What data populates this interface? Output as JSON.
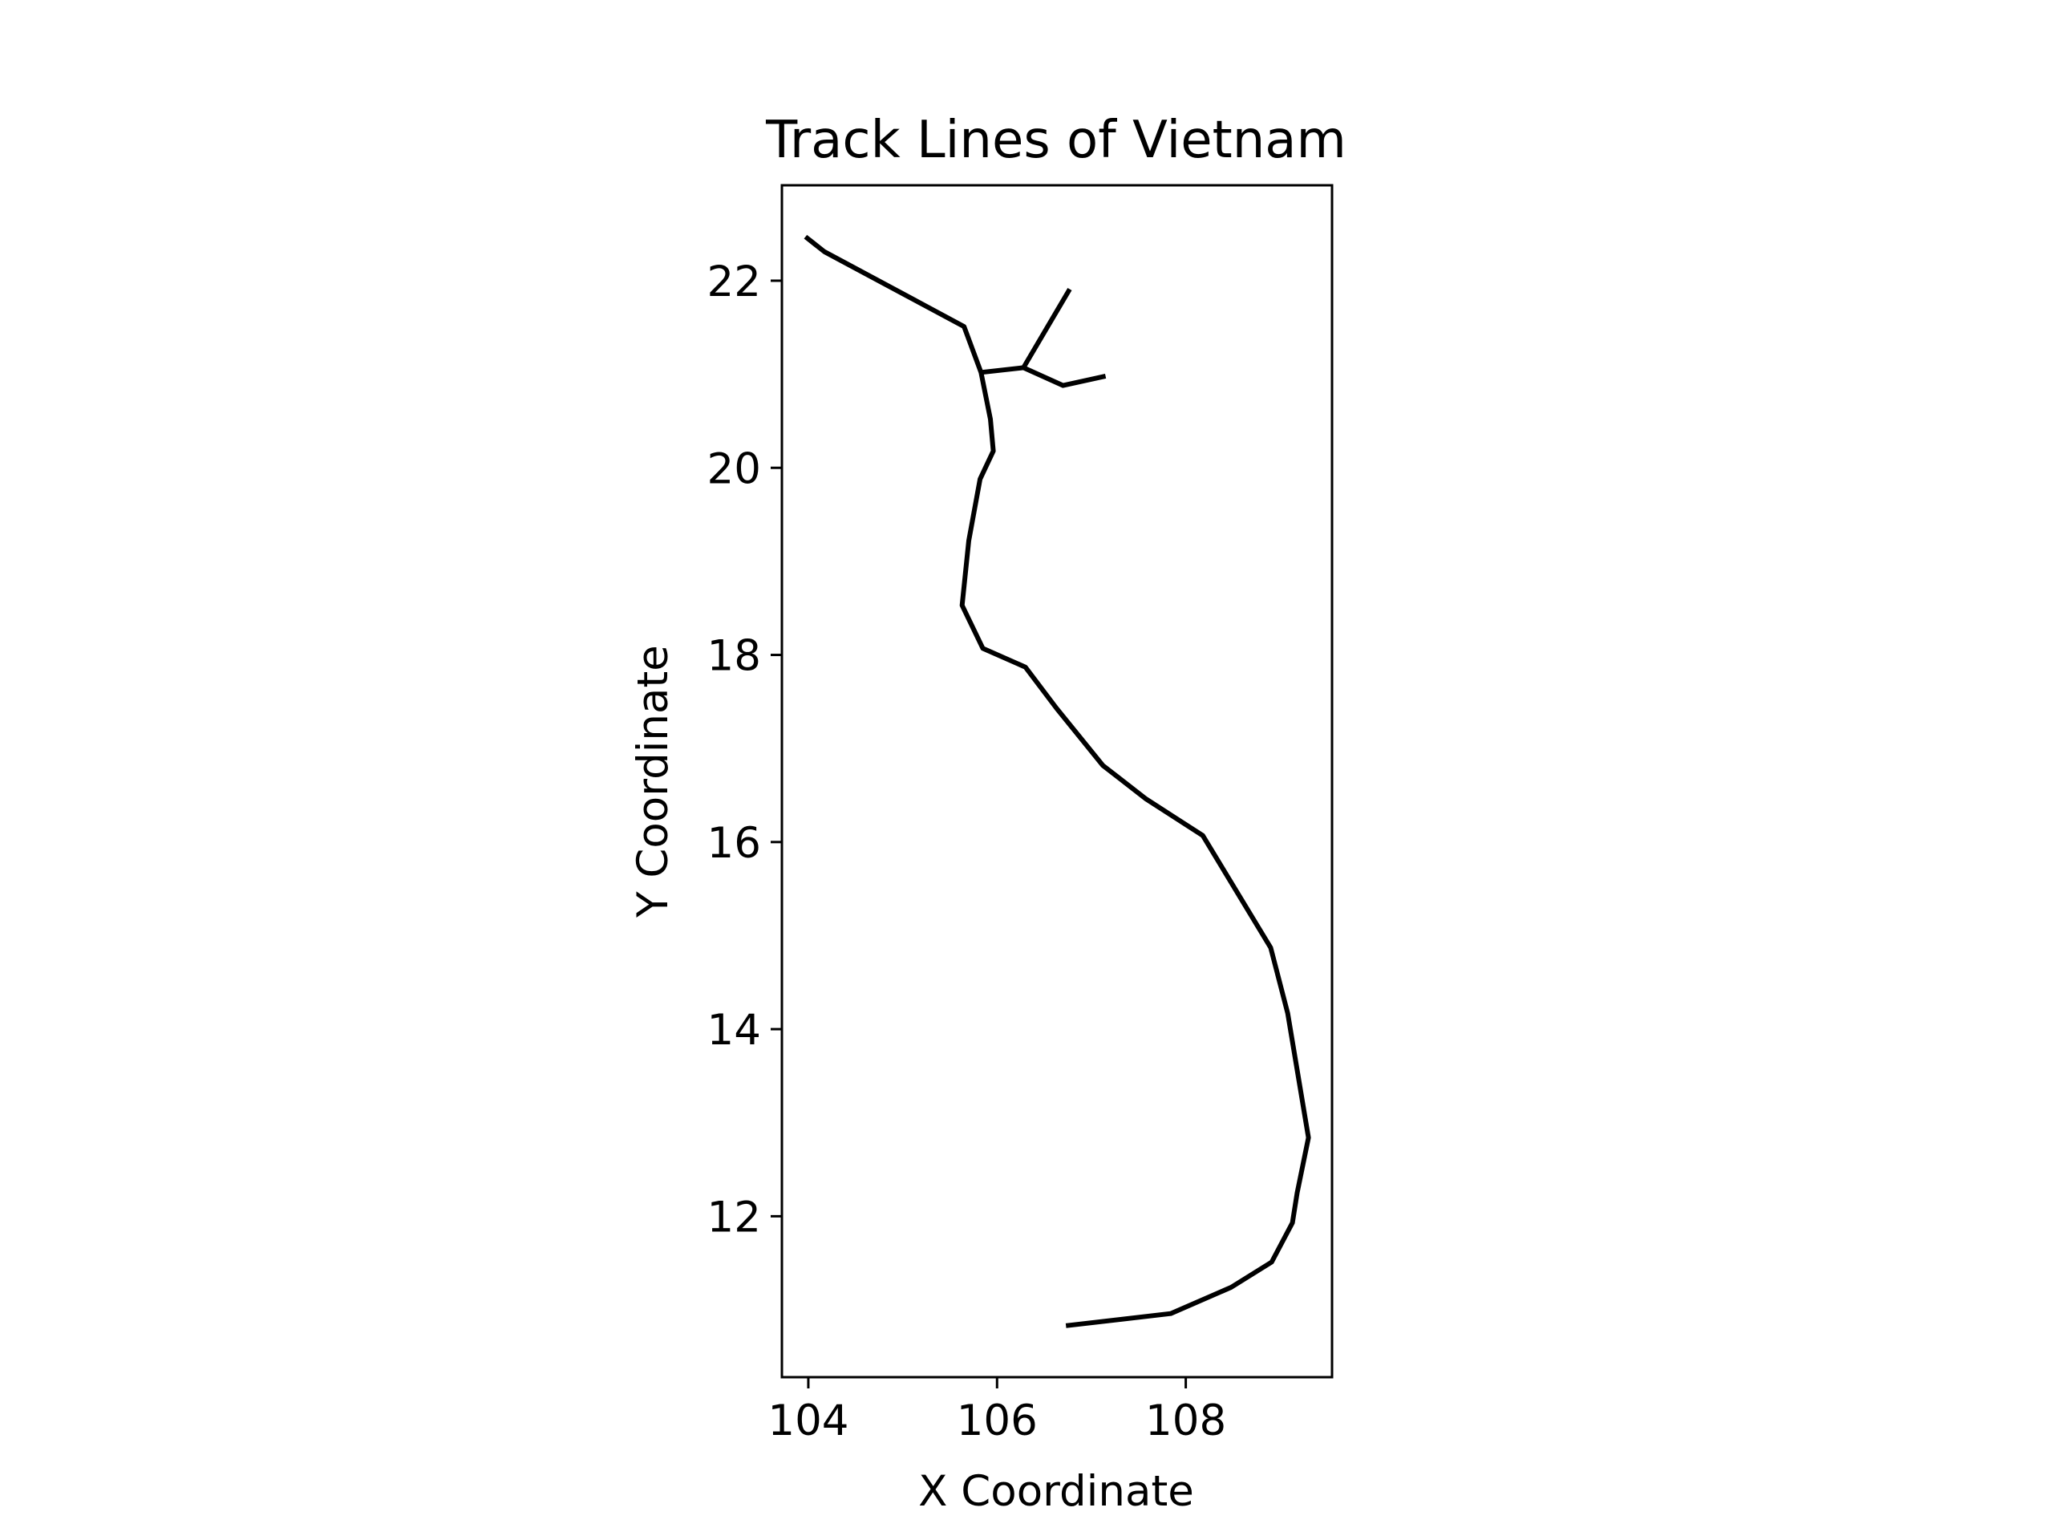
{
  "chart_data": {
    "type": "line",
    "title": "Track Lines of Vietnam",
    "xlabel": "X Coordinate",
    "ylabel": "Y Coordinate",
    "xlim": [
      103.72,
      109.55
    ],
    "ylim": [
      10.28,
      23.02
    ],
    "x_ticks": [
      104,
      106,
      108
    ],
    "y_ticks": [
      12,
      14,
      16,
      18,
      20,
      22
    ],
    "x_tick_labels": [
      "104",
      "106",
      "108"
    ],
    "y_tick_labels": [
      "12",
      "14",
      "16",
      "18",
      "20",
      "22"
    ],
    "grid": false,
    "legend": "none",
    "line_color": "#000000",
    "series": [
      {
        "values": [
          [
            103.97,
            22.47
          ],
          [
            104.17,
            22.31
          ],
          [
            105.65,
            21.51
          ],
          [
            105.83,
            21.02
          ],
          [
            105.93,
            20.52
          ],
          [
            105.96,
            20.18
          ],
          [
            105.82,
            19.88
          ],
          [
            105.7,
            19.22
          ],
          [
            105.63,
            18.53
          ],
          [
            105.85,
            18.07
          ],
          [
            106.3,
            17.87
          ],
          [
            106.63,
            17.43
          ],
          [
            107.12,
            16.82
          ],
          [
            107.58,
            16.46
          ],
          [
            108.18,
            16.07
          ],
          [
            108.9,
            14.87
          ],
          [
            109.08,
            14.17
          ],
          [
            109.3,
            12.84
          ],
          [
            109.18,
            12.25
          ],
          [
            109.13,
            11.93
          ],
          [
            108.91,
            11.51
          ],
          [
            108.48,
            11.24
          ],
          [
            107.84,
            10.96
          ],
          [
            106.73,
            10.83
          ]
        ]
      },
      {
        "values": [
          [
            105.83,
            21.02
          ],
          [
            106.28,
            21.07
          ],
          [
            106.77,
            21.91
          ]
        ]
      },
      {
        "values": [
          [
            106.28,
            21.07
          ],
          [
            106.7,
            20.88
          ],
          [
            107.15,
            20.98
          ]
        ]
      }
    ]
  }
}
